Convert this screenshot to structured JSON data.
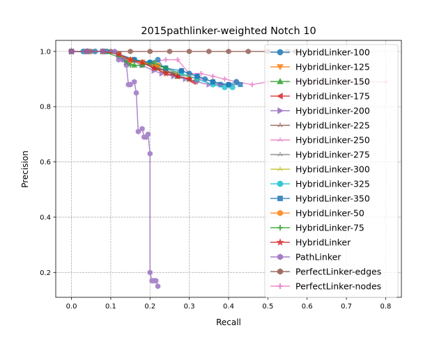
{
  "chart_data": {
    "type": "line",
    "title": "2015pathlinker-weighted Notch 10",
    "xlabel": "Recall",
    "ylabel": "Precision",
    "xlim": [
      -0.04,
      0.84
    ],
    "ylim": [
      0.11,
      1.04
    ],
    "grid": true,
    "legend_position": "top-right",
    "x_ticks": [
      0.0,
      0.1,
      0.2,
      0.3,
      0.4,
      0.5,
      0.6,
      0.7,
      0.8
    ],
    "x_tick_labels": [
      "0.0",
      "0.1",
      "0.2",
      "0.3",
      "0.4",
      "0.5",
      "0.6",
      "0.7",
      "0.8"
    ],
    "y_ticks": [
      0.2,
      0.4,
      0.6,
      0.8,
      1.0
    ],
    "y_tick_labels": [
      "0.2",
      "0.4",
      "0.6",
      "0.8",
      "1.0"
    ],
    "series": [
      {
        "name": "HybridLinker-100",
        "color": "#1f77b4",
        "marker": "circle",
        "x": [
          0.0,
          0.03,
          0.06,
          0.09,
          0.12,
          0.14,
          0.16,
          0.18,
          0.2,
          0.22,
          0.24,
          0.26,
          0.28,
          0.3,
          0.32,
          0.34,
          0.36,
          0.38,
          0.4,
          0.42
        ],
        "y": [
          1.0,
          1.0,
          1.0,
          1.0,
          0.99,
          0.97,
          0.97,
          0.96,
          0.96,
          0.97,
          0.93,
          0.92,
          0.93,
          0.92,
          0.91,
          0.9,
          0.89,
          0.88,
          0.88,
          0.89
        ]
      },
      {
        "name": "HybridLinker-125",
        "color": "#ff7f0e",
        "marker": "triangle-down",
        "x": [
          0.0,
          0.04,
          0.08,
          0.12,
          0.15,
          0.18,
          0.21,
          0.24,
          0.27,
          0.3,
          0.32
        ],
        "y": [
          1.0,
          1.0,
          1.0,
          0.99,
          0.96,
          0.96,
          0.94,
          0.92,
          0.91,
          0.9,
          0.89
        ]
      },
      {
        "name": "HybridLinker-150",
        "color": "#2ca02c",
        "marker": "triangle-up",
        "x": [
          0.0,
          0.04,
          0.08,
          0.12,
          0.14,
          0.16,
          0.18,
          0.2,
          0.22,
          0.24,
          0.27,
          0.3
        ],
        "y": [
          1.0,
          1.0,
          1.0,
          0.99,
          0.96,
          0.95,
          0.95,
          0.96,
          0.94,
          0.93,
          0.91,
          0.9
        ]
      },
      {
        "name": "HybridLinker-175",
        "color": "#d62728",
        "marker": "triangle-left",
        "x": [
          0.0,
          0.04,
          0.08,
          0.12,
          0.15,
          0.18,
          0.21,
          0.24,
          0.27,
          0.3,
          0.31
        ],
        "y": [
          1.0,
          1.0,
          1.0,
          0.99,
          0.97,
          0.96,
          0.94,
          0.93,
          0.91,
          0.9,
          0.89
        ]
      },
      {
        "name": "HybridLinker-200",
        "color": "#9467bd",
        "marker": "triangle-right",
        "x": [
          0.0,
          0.04,
          0.08,
          0.12,
          0.15,
          0.18,
          0.21,
          0.23,
          0.26,
          0.29,
          0.32,
          0.35,
          0.38
        ],
        "y": [
          1.0,
          1.0,
          1.0,
          0.99,
          0.97,
          0.95,
          0.93,
          0.92,
          0.91,
          0.9,
          0.89,
          0.88,
          0.88
        ]
      },
      {
        "name": "HybridLinker-225",
        "color": "#8c564b",
        "marker": "tri",
        "x": [
          0.0,
          0.04,
          0.08,
          0.12,
          0.15,
          0.18,
          0.22,
          0.26,
          0.3
        ],
        "y": [
          1.0,
          1.0,
          1.0,
          0.99,
          0.97,
          0.96,
          0.94,
          0.92,
          0.91
        ]
      },
      {
        "name": "HybridLinker-250",
        "color": "#e377c2",
        "marker": "tri",
        "x": [
          0.0,
          0.04,
          0.08,
          0.12,
          0.15,
          0.18,
          0.21,
          0.24,
          0.27,
          0.3,
          0.33
        ],
        "y": [
          1.0,
          1.0,
          1.0,
          0.99,
          0.97,
          0.96,
          0.95,
          0.94,
          0.92,
          0.91,
          0.9
        ]
      },
      {
        "name": "HybridLinker-275",
        "color": "#7f7f7f",
        "marker": "tri",
        "x": [
          0.0,
          0.04,
          0.08,
          0.12,
          0.15,
          0.18,
          0.21,
          0.24,
          0.27,
          0.3
        ],
        "y": [
          1.0,
          1.0,
          1.0,
          0.99,
          0.97,
          0.96,
          0.95,
          0.93,
          0.92,
          0.91
        ]
      },
      {
        "name": "HybridLinker-300",
        "color": "#bcbd22",
        "marker": "tri",
        "x": [
          0.0,
          0.04,
          0.08,
          0.12,
          0.15,
          0.18,
          0.21,
          0.24,
          0.27,
          0.3,
          0.32
        ],
        "y": [
          1.0,
          1.0,
          1.0,
          0.99,
          0.97,
          0.96,
          0.95,
          0.94,
          0.92,
          0.91,
          0.9
        ]
      },
      {
        "name": "HybridLinker-325",
        "color": "#17becf",
        "marker": "circle",
        "x": [
          0.0,
          0.04,
          0.08,
          0.12,
          0.16,
          0.2,
          0.24,
          0.28,
          0.32,
          0.36,
          0.39,
          0.41
        ],
        "y": [
          1.0,
          1.0,
          1.0,
          0.99,
          0.97,
          0.96,
          0.94,
          0.92,
          0.9,
          0.88,
          0.87,
          0.87
        ]
      },
      {
        "name": "HybridLinker-350",
        "color": "#1f77b4",
        "marker": "square",
        "x": [
          0.0,
          0.04,
          0.08,
          0.12,
          0.16,
          0.2,
          0.24,
          0.28,
          0.32,
          0.36,
          0.4,
          0.43
        ],
        "y": [
          1.0,
          1.0,
          1.0,
          0.99,
          0.97,
          0.96,
          0.94,
          0.93,
          0.91,
          0.89,
          0.88,
          0.88
        ]
      },
      {
        "name": "HybridLinker-50",
        "color": "#ff7f0e",
        "marker": "hexagon",
        "x": [
          0.0,
          0.04,
          0.08,
          0.12,
          0.15,
          0.18,
          0.22
        ],
        "y": [
          1.0,
          1.0,
          1.0,
          0.99,
          0.97,
          0.96,
          0.95
        ]
      },
      {
        "name": "HybridLinker-75",
        "color": "#2ca02c",
        "marker": "plus",
        "x": [
          0.0,
          0.04,
          0.08,
          0.12,
          0.15,
          0.18,
          0.21,
          0.24
        ],
        "y": [
          1.0,
          1.0,
          1.0,
          0.98,
          0.95,
          0.95,
          0.96,
          0.94
        ]
      },
      {
        "name": "HybridLinker",
        "color": "#d62728",
        "marker": "star",
        "x": [
          0.0,
          0.04,
          0.08,
          0.12,
          0.15,
          0.18,
          0.21,
          0.24,
          0.27,
          0.3
        ],
        "y": [
          1.0,
          1.0,
          1.0,
          0.99,
          0.97,
          0.96,
          0.94,
          0.92,
          0.91,
          0.9
        ]
      },
      {
        "name": "PathLinker",
        "color": "#9467bd",
        "marker": "hexagon",
        "x": [
          0.0,
          0.04,
          0.08,
          0.11,
          0.12,
          0.13,
          0.14,
          0.145,
          0.15,
          0.16,
          0.165,
          0.17,
          0.18,
          0.185,
          0.19,
          0.195,
          0.2,
          0.2,
          0.205,
          0.21,
          0.215,
          0.22
        ],
        "y": [
          1.0,
          1.0,
          1.0,
          1.0,
          0.97,
          0.97,
          0.95,
          0.88,
          0.88,
          0.89,
          0.85,
          0.71,
          0.72,
          0.69,
          0.69,
          0.7,
          0.63,
          0.2,
          0.17,
          0.17,
          0.17,
          0.15
        ]
      },
      {
        "name": "PerfectLinker-edges",
        "color": "#8c564b",
        "marker": "hexagon",
        "x": [
          0.0,
          0.05,
          0.1,
          0.15,
          0.2,
          0.25,
          0.3,
          0.35,
          0.4,
          0.45,
          0.5,
          0.55,
          0.57
        ],
        "y": [
          1.0,
          1.0,
          1.0,
          1.0,
          1.0,
          1.0,
          1.0,
          1.0,
          1.0,
          1.0,
          1.0,
          1.0,
          1.0
        ]
      },
      {
        "name": "PerfectLinker-nodes",
        "color": "#e377c2",
        "marker": "plus",
        "x": [
          0.0,
          0.04,
          0.08,
          0.12,
          0.16,
          0.2,
          0.24,
          0.27,
          0.3,
          0.33,
          0.36,
          0.39,
          0.42,
          0.46,
          0.5,
          0.55,
          0.6,
          0.65,
          0.7,
          0.75,
          0.8
        ],
        "y": [
          1.0,
          1.0,
          1.0,
          0.99,
          0.97,
          0.96,
          0.97,
          0.97,
          0.92,
          0.92,
          0.91,
          0.9,
          0.89,
          0.88,
          0.89,
          0.89,
          0.89,
          0.89,
          0.89,
          0.89,
          0.89
        ]
      }
    ]
  }
}
